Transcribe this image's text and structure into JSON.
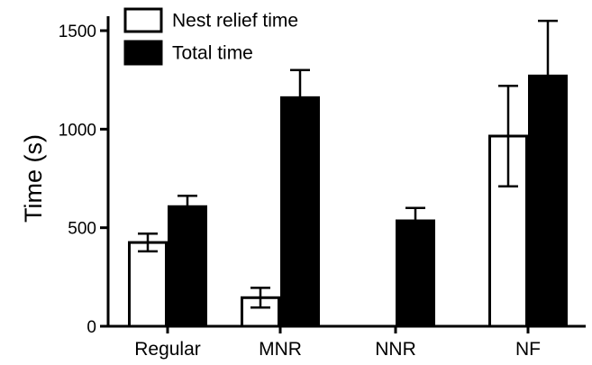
{
  "chart_data": {
    "type": "bar",
    "title": "",
    "xlabel": "",
    "ylabel": "Time (s)",
    "ylim": [
      0,
      1600
    ],
    "yticks": [
      0,
      500,
      1000,
      1500
    ],
    "categories": [
      "Regular",
      "MNR",
      "NNR",
      "NF"
    ],
    "series": [
      {
        "name": "Nest relief time",
        "fill": "#ffffff",
        "values": [
          425,
          145,
          0,
          965
        ],
        "errors": [
          45,
          50,
          0,
          255
        ]
      },
      {
        "name": "Total time",
        "fill": "#000000",
        "values": [
          607,
          1160,
          535,
          1270
        ],
        "errors": [
          55,
          140,
          65,
          280
        ]
      }
    ],
    "legend_position": "top-left",
    "grid": false
  }
}
